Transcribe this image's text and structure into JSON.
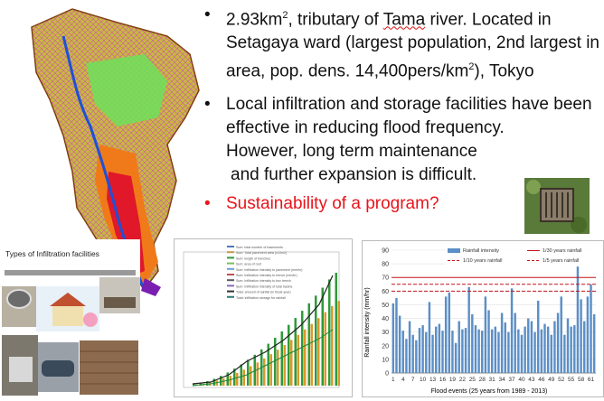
{
  "bullets": [
    {
      "pre": "2.93km",
      "sup1": "2",
      "mid1": ", tributary of ",
      "wavy": "Tama",
      "mid2": " river. Located in Setagaya ward (largest population, 2nd largest in area, pop. dens. 14,400pers/km",
      "sup2": "2",
      "post": "), Tokyo"
    },
    {
      "line1": "Local infiltration and storage facilities have been effective in reducing flood frequency.",
      "line2": "However, long term maintenance",
      "line3": "and further expansion is difficult."
    },
    {
      "text": "Sustainability of a program?"
    }
  ],
  "bullet_glyph": "•",
  "colors": {
    "red_bullet": "#e8141b",
    "bar": "#5b8fc7",
    "line_solid": "#c0141b",
    "line_dashed": "#c0141b"
  },
  "infiltration": {
    "title": "Types of Infiltration facilities"
  },
  "left_chart": {
    "legend": [
      "Sum: total number of basements",
      "Sum: Total pavement area (x10m2)",
      "Sum: length of trenches",
      "Sum: area of roof",
      "Sum: Infiltration intensity to pavement (mm/hr)",
      "Sum: Infiltration intensity to trench (mm/hr)",
      "Sum: Infiltration intensity to box trench",
      "Sum: Infiltration intensity of total basins",
      "Total: amount of rainfall (in fiscal year)",
      "Total: infiltration storage for rainfall"
    ]
  },
  "chart_data": {
    "type": "bar",
    "title": "",
    "xlabel": "Flood events (25 years from 1989 - 2013)",
    "ylabel": "Rainfall intensity (mm/hr)",
    "ylim": [
      0,
      90
    ],
    "yticks": [
      0,
      10,
      20,
      30,
      40,
      50,
      60,
      70,
      80,
      90
    ],
    "xticks": [
      "1",
      "4",
      "7",
      "10",
      "13",
      "16",
      "19",
      "22",
      "25",
      "28",
      "31",
      "34",
      "37",
      "40",
      "43",
      "46",
      "49",
      "52",
      "55",
      "58",
      "61"
    ],
    "categories": [
      "1",
      "2",
      "3",
      "4",
      "5",
      "6",
      "7",
      "8",
      "9",
      "10",
      "11",
      "12",
      "13",
      "14",
      "15",
      "16",
      "17",
      "18",
      "19",
      "20",
      "21",
      "22",
      "23",
      "24",
      "25",
      "26",
      "27",
      "28",
      "29",
      "30",
      "31",
      "32",
      "33",
      "34",
      "35",
      "36",
      "37",
      "38",
      "39",
      "40",
      "41",
      "42",
      "43",
      "44",
      "45",
      "46",
      "47",
      "48",
      "49",
      "50",
      "51",
      "52",
      "53",
      "54",
      "55",
      "56",
      "57",
      "58",
      "59",
      "60",
      "61",
      "62"
    ],
    "series": [
      {
        "name": "Rainfall intensity",
        "type": "bar",
        "values": [
          51,
          55,
          42,
          31,
          25,
          38,
          28,
          24,
          33,
          35,
          30,
          52,
          28,
          34,
          36,
          31,
          56,
          59,
          31,
          22,
          38,
          32,
          33,
          63,
          43,
          35,
          32,
          31,
          56,
          46,
          32,
          34,
          30,
          44,
          37,
          30,
          62,
          44,
          32,
          28,
          34,
          40,
          38,
          30,
          53,
          32,
          36,
          34,
          28,
          38,
          44,
          56,
          28,
          40,
          34,
          35,
          78,
          54,
          38,
          56,
          65,
          43
        ]
      },
      {
        "name": "1/30 years rainfall",
        "type": "line",
        "style": "solid",
        "value": 70
      },
      {
        "name": "1/10 years rainfall",
        "type": "line",
        "style": "dashed",
        "value": 65
      },
      {
        "name": "1/5 years rainfall",
        "type": "line",
        "style": "dashed",
        "value": 60
      }
    ],
    "legend_position": "top"
  }
}
